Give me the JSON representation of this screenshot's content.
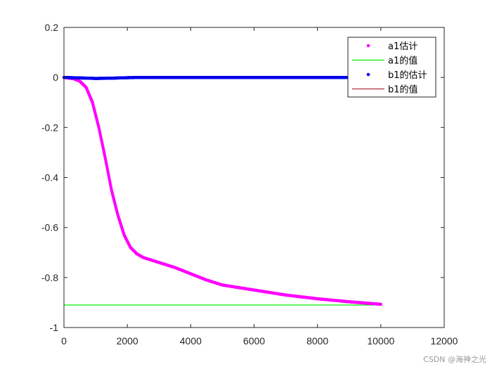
{
  "chart_data": {
    "type": "line",
    "title": "",
    "xlabel": "",
    "ylabel": "",
    "xlim": [
      0,
      12000
    ],
    "ylim": [
      -1,
      0.2
    ],
    "xticks": [
      "0",
      "2000",
      "4000",
      "6000",
      "8000",
      "10000",
      "12000"
    ],
    "yticks": [
      "0.2",
      "0",
      "-0.2",
      "-0.4",
      "-0.6",
      "-0.8",
      "-1"
    ],
    "grid": false,
    "legend_position": "top-right",
    "series": [
      {
        "name": "a1估计",
        "style": "dots",
        "color": "#ff00ff",
        "x": [
          0,
          300,
          500,
          700,
          900,
          1100,
          1300,
          1500,
          1700,
          1900,
          2100,
          2300,
          2500,
          3000,
          3500,
          4000,
          4500,
          5000,
          6000,
          7000,
          8000,
          9000,
          10000
        ],
        "y": [
          0,
          -0.005,
          -0.015,
          -0.04,
          -0.1,
          -0.2,
          -0.32,
          -0.45,
          -0.55,
          -0.63,
          -0.68,
          -0.705,
          -0.72,
          -0.74,
          -0.76,
          -0.785,
          -0.81,
          -0.83,
          -0.85,
          -0.87,
          -0.885,
          -0.897,
          -0.907
        ]
      },
      {
        "name": "a1的值",
        "style": "line",
        "color": "#00ee00",
        "x": [
          0,
          10000
        ],
        "y": [
          -0.91,
          -0.91
        ]
      },
      {
        "name": "b1的估计",
        "style": "dots",
        "color": "#0000ee",
        "x": [
          0,
          500,
          1000,
          1500,
          2000,
          2500,
          3000,
          4000,
          6000,
          8000,
          10000
        ],
        "y": [
          0,
          -0.002,
          -0.004,
          -0.003,
          -0.001,
          0,
          0,
          0,
          0,
          0,
          0
        ]
      },
      {
        "name": "b1的值",
        "style": "line",
        "color": "#b03040",
        "x": [
          0,
          10000
        ],
        "y": [
          0,
          0
        ]
      }
    ]
  },
  "watermark": "CSDN @海神之光"
}
